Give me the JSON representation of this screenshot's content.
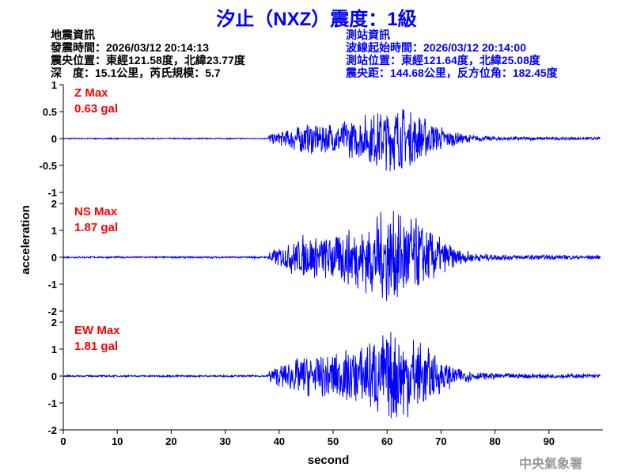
{
  "title": "汐止（NXZ）震度：1級",
  "quake_info": {
    "heading": "地震資訊",
    "origin_time": "發震時間：2026/03/12 20:14:13",
    "epicenter": "震央位置：東經121.58度，北緯23.77度",
    "depth_magnitude": "深　度：15.1公里，芮氏規模：5.7"
  },
  "station_info": {
    "heading": "測站資訊",
    "start_time": "波線起始時間：2026/03/12 20:14:00",
    "location": "測站位置：東經121.64度，北緯25.08度",
    "distance": "震央距：144.68公里，反方位角：182.45度"
  },
  "watermark": "中央氣象署",
  "colors": {
    "title": "#0000ff",
    "trace": "#0000ff",
    "max_label": "#ff0000",
    "quake_info": "#000000",
    "station_info": "#0000ff"
  },
  "chart_data": {
    "type": "line",
    "xlabel": "second",
    "ylabel": "acceleration",
    "xlim": [
      0,
      100
    ],
    "xticks": [
      "0",
      "10",
      "20",
      "30",
      "40",
      "50",
      "60",
      "70",
      "80",
      "90"
    ],
    "panels": [
      {
        "component": "Z",
        "max_label": "Z Max",
        "max_value": "0.63 gal",
        "ylim": [
          -1,
          1
        ],
        "yticks": [
          "1",
          "0.5",
          "0",
          "-0.5",
          "-1"
        ],
        "peak": 0.63,
        "onset_s": 38,
        "peak_time_s": 62
      },
      {
        "component": "NS",
        "max_label": "NS Max",
        "max_value": "1.87 gal",
        "ylim": [
          -2,
          2
        ],
        "yticks": [
          "2",
          "1",
          "0",
          "-1",
          "-2"
        ],
        "peak": 1.87,
        "onset_s": 38,
        "peak_time_s": 62
      },
      {
        "component": "EW",
        "max_label": "EW Max",
        "max_value": "1.81 gal",
        "ylim": [
          -2,
          2
        ],
        "yticks": [
          "2",
          "1",
          "0",
          "-1",
          "-2"
        ],
        "peak": 1.81,
        "onset_s": 38,
        "peak_time_s": 62
      }
    ]
  }
}
